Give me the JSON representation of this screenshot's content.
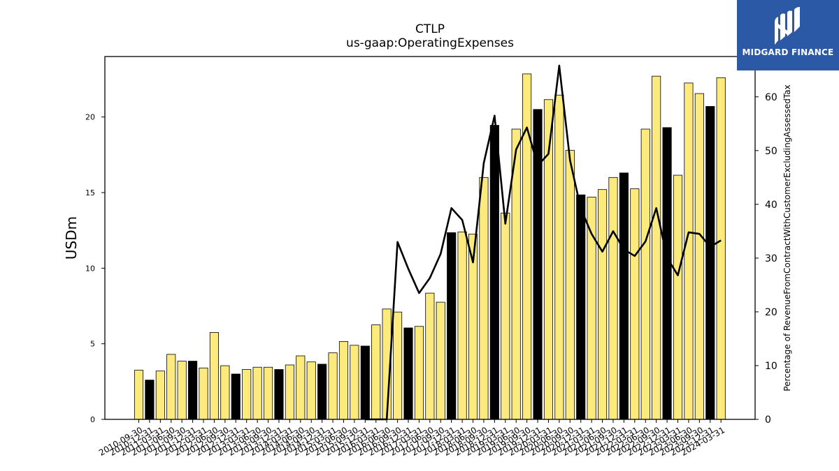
{
  "chart_data": {
    "type": "bar",
    "title": "CTLP",
    "subtitle": "us-gaap:OperatingExpenses",
    "ylabel": "USDm",
    "y2label": "Percentage of RevenueFromContractWithCustomerExcludingAssessedTax",
    "ylim": [
      0,
      24
    ],
    "y2lim": [
      0,
      67.5
    ],
    "yticks": [
      0,
      5,
      10,
      15,
      20
    ],
    "y2ticks": [
      0,
      10,
      20,
      30,
      40,
      50,
      60
    ],
    "categories": [
      "2010-09-30",
      "2010-12-31",
      "2011-03-31",
      "2011-06-30",
      "2011-09-30",
      "2011-12-31",
      "2012-03-31",
      "2012-06-30",
      "2012-09-30",
      "2012-12-31",
      "2013-03-31",
      "2013-06-30",
      "2013-09-30",
      "2013-12-31",
      "2014-03-31",
      "2014-06-30",
      "2014-09-30",
      "2014-12-31",
      "2015-03-31",
      "2015-06-30",
      "2015-09-30",
      "2015-12-31",
      "2016-03-31",
      "2016-06-30",
      "2016-09-30",
      "2016-12-31",
      "2017-03-31",
      "2017-06-30",
      "2017-09-30",
      "2017-12-31",
      "2018-03-31",
      "2018-06-30",
      "2018-09-30",
      "2018-12-31",
      "2019-03-31",
      "2019-06-30",
      "2019-09-30",
      "2019-12-31",
      "2020-03-31",
      "2020-06-30",
      "2020-09-30",
      "2020-12-31",
      "2021-03-31",
      "2021-06-30",
      "2021-09-30",
      "2021-12-31",
      "2022-03-31",
      "2022-06-30",
      "2022-09-30",
      "2022-12-31",
      "2023-03-31",
      "2023-06-30",
      "2023-09-30",
      "2023-12-31",
      "2024-03-31"
    ],
    "series": [
      {
        "type": "bar",
        "values": [
          3.25,
          2.6,
          3.2,
          4.3,
          3.85,
          3.85,
          3.4,
          5.75,
          3.55,
          3.0,
          3.3,
          3.45,
          3.45,
          3.3,
          3.6,
          4.2,
          3.8,
          3.65,
          4.4,
          5.15,
          4.9,
          4.85,
          6.25,
          7.3,
          7.1,
          6.05,
          6.15,
          8.35,
          7.75,
          12.35,
          12.4,
          12.25,
          16.0,
          19.45,
          13.65,
          19.2,
          22.85,
          20.5,
          21.15,
          21.45,
          17.8,
          14.85,
          14.7,
          15.2,
          16.0,
          16.3,
          15.25,
          19.2,
          22.7,
          19.3,
          16.15,
          22.25,
          21.55,
          20.7,
          22.6
        ],
        "highlight": [
          false,
          true,
          false,
          false,
          false,
          true,
          false,
          false,
          false,
          true,
          false,
          false,
          false,
          true,
          false,
          false,
          false,
          true,
          false,
          false,
          false,
          true,
          false,
          false,
          false,
          true,
          false,
          false,
          false,
          true,
          false,
          false,
          false,
          true,
          false,
          false,
          false,
          true,
          false,
          false,
          false,
          true,
          false,
          false,
          false,
          true,
          false,
          false,
          false,
          true,
          false,
          false,
          false,
          true,
          false
        ]
      },
      {
        "type": "line",
        "axis": "right",
        "values": [
          null,
          null,
          null,
          null,
          null,
          null,
          null,
          null,
          null,
          null,
          null,
          null,
          null,
          null,
          null,
          null,
          null,
          null,
          null,
          null,
          null,
          0,
          0,
          0,
          33,
          28,
          23.5,
          26.3,
          30.8,
          39.3,
          37.1,
          29.2,
          47.7,
          56.5,
          36.4,
          50.2,
          54.3,
          47.2,
          49.4,
          65.8,
          48.2,
          39.2,
          34.5,
          31.2,
          35,
          31.6,
          30.4,
          33.1,
          39.3,
          30.1,
          26.8,
          34.8,
          34.5,
          32.1,
          33.3
        ]
      }
    ],
    "colors": {
      "bar": "#fceb7c",
      "bar_highlight": "#000000",
      "bar_edge": "#000000",
      "line": "#000000"
    }
  },
  "logo": {
    "text": "MIDGARD FINANCE",
    "icon": "midgard-logo-icon",
    "background": "#2c59a6"
  }
}
